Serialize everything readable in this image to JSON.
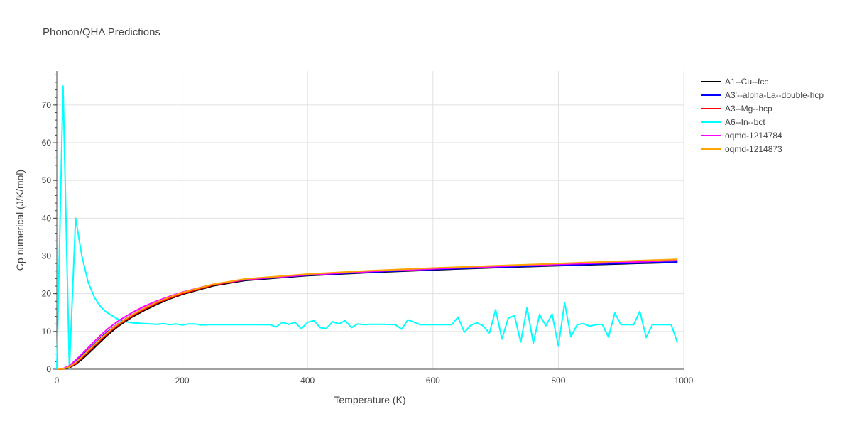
{
  "chart_data": {
    "type": "line",
    "title": "Phonon/QHA Predictions",
    "xlabel": "Temperature (K)",
    "ylabel": "Cp numerical (J/K/mol)",
    "xlim": [
      0,
      1000
    ],
    "ylim": [
      0,
      79
    ],
    "xticks": [
      0,
      200,
      400,
      600,
      800,
      1000
    ],
    "yticks": [
      0,
      10,
      20,
      30,
      40,
      50,
      60,
      70
    ],
    "grid": true,
    "legend_position": "top-right",
    "series": [
      {
        "name": "A1--Cu--fcc",
        "color": "#000000",
        "x": [
          0,
          10,
          20,
          30,
          40,
          50,
          60,
          70,
          80,
          90,
          100,
          120,
          140,
          160,
          180,
          200,
          250,
          300,
          400,
          500,
          600,
          700,
          800,
          900,
          990
        ],
        "y": [
          0,
          0.05,
          0.4,
          1.3,
          2.6,
          4.1,
          5.7,
          7.3,
          8.9,
          10.3,
          11.6,
          13.8,
          15.6,
          17.2,
          18.6,
          19.8,
          22.1,
          23.5,
          24.8,
          25.6,
          26.3,
          26.9,
          27.4,
          27.9,
          28.3
        ]
      },
      {
        "name": "A3'--alpha-La--double-hcp",
        "color": "#0000ff",
        "x": [
          0,
          10,
          20,
          30,
          40,
          50,
          60,
          70,
          80,
          90,
          100,
          120,
          140,
          160,
          180,
          200,
          250,
          300,
          400,
          500,
          600,
          700,
          800,
          900,
          990
        ],
        "y": [
          0,
          0.1,
          0.7,
          2.0,
          3.5,
          5.1,
          6.7,
          8.3,
          9.8,
          11.1,
          12.3,
          14.4,
          16.2,
          17.7,
          19.0,
          20.2,
          22.3,
          23.6,
          24.9,
          25.7,
          26.4,
          27.0,
          27.5,
          28.0,
          28.4
        ]
      },
      {
        "name": "A3--Mg--hcp",
        "color": "#ff0000",
        "x": [
          0,
          10,
          20,
          30,
          40,
          50,
          60,
          70,
          80,
          90,
          100,
          120,
          140,
          160,
          180,
          200,
          250,
          300,
          400,
          500,
          600,
          700,
          800,
          900,
          990
        ],
        "y": [
          0,
          0.05,
          0.5,
          1.5,
          3.0,
          4.6,
          6.2,
          7.8,
          9.3,
          10.7,
          11.9,
          14.1,
          15.9,
          17.5,
          18.8,
          20.0,
          22.3,
          23.7,
          25.0,
          25.9,
          26.6,
          27.2,
          27.8,
          28.3,
          28.8
        ]
      },
      {
        "name": "A6--In--bct",
        "color": "#00ffff",
        "x": [
          0,
          10,
          20,
          30,
          40,
          50,
          60,
          70,
          80,
          90,
          100,
          110,
          120,
          130,
          140,
          150,
          160,
          170,
          180,
          190,
          200,
          210,
          220,
          230,
          240,
          260,
          280,
          300,
          320,
          340,
          350,
          360,
          370,
          380,
          390,
          400,
          410,
          420,
          430,
          440,
          450,
          460,
          470,
          480,
          490,
          500,
          520,
          540,
          550,
          560,
          580,
          600,
          620,
          630,
          640,
          650,
          660,
          670,
          680,
          690,
          700,
          710,
          720,
          730,
          740,
          750,
          760,
          770,
          780,
          790,
          800,
          810,
          820,
          830,
          840,
          850,
          860,
          870,
          880,
          890,
          900,
          910,
          920,
          930,
          940,
          950,
          960,
          970,
          980,
          990
        ],
        "y": [
          0,
          75,
          0,
          40,
          30,
          23,
          19,
          16.5,
          15,
          14,
          13,
          12.6,
          12.3,
          12.2,
          12.1,
          12.0,
          11.9,
          12.1,
          11.8,
          12.0,
          11.7,
          12.0,
          12.0,
          11.7,
          11.8,
          11.8,
          11.8,
          11.8,
          11.8,
          11.8,
          11.2,
          12.4,
          11.9,
          12.4,
          10.7,
          12.4,
          12.9,
          11.0,
          10.8,
          12.6,
          12.0,
          12.9,
          11.0,
          12.0,
          11.8,
          11.9,
          11.9,
          11.8,
          10.6,
          13.1,
          11.8,
          11.8,
          11.8,
          11.8,
          13.8,
          9.8,
          11.6,
          12.3,
          11.5,
          9.6,
          15.8,
          8.0,
          13.5,
          14.2,
          7.2,
          16.3,
          6.9,
          14.5,
          11.5,
          14.6,
          6.1,
          17.6,
          8.6,
          11.8,
          12.1,
          11.4,
          11.8,
          11.9,
          8.5,
          14.9,
          11.8,
          11.8,
          11.8,
          15.3,
          8.4,
          11.8,
          11.8,
          11.8,
          11.8,
          7.0
        ]
      },
      {
        "name": "oqmd-1214784",
        "color": "#ff00ff",
        "x": [
          0,
          10,
          20,
          30,
          40,
          50,
          60,
          70,
          80,
          90,
          100,
          120,
          140,
          160,
          180,
          200,
          250,
          300,
          400,
          500,
          600,
          700,
          800,
          900,
          990
        ],
        "y": [
          0,
          0.15,
          0.9,
          2.4,
          4.0,
          5.7,
          7.4,
          9.0,
          10.5,
          11.8,
          13.0,
          15.0,
          16.7,
          18.1,
          19.3,
          20.4,
          22.5,
          23.8,
          25.0,
          25.9,
          26.6,
          27.2,
          27.8,
          28.3,
          28.8
        ]
      },
      {
        "name": "oqmd-1214873",
        "color": "#ffa500",
        "x": [
          0,
          10,
          20,
          30,
          40,
          50,
          60,
          70,
          80,
          90,
          100,
          120,
          140,
          160,
          180,
          200,
          250,
          300,
          400,
          500,
          600,
          700,
          800,
          900,
          990
        ],
        "y": [
          0,
          0.1,
          0.6,
          1.8,
          3.3,
          4.9,
          6.5,
          8.1,
          9.6,
          11.0,
          12.2,
          14.4,
          16.2,
          17.8,
          19.1,
          20.3,
          22.5,
          23.9,
          25.2,
          26.1,
          26.8,
          27.4,
          28.0,
          28.6,
          29.1
        ]
      }
    ]
  }
}
